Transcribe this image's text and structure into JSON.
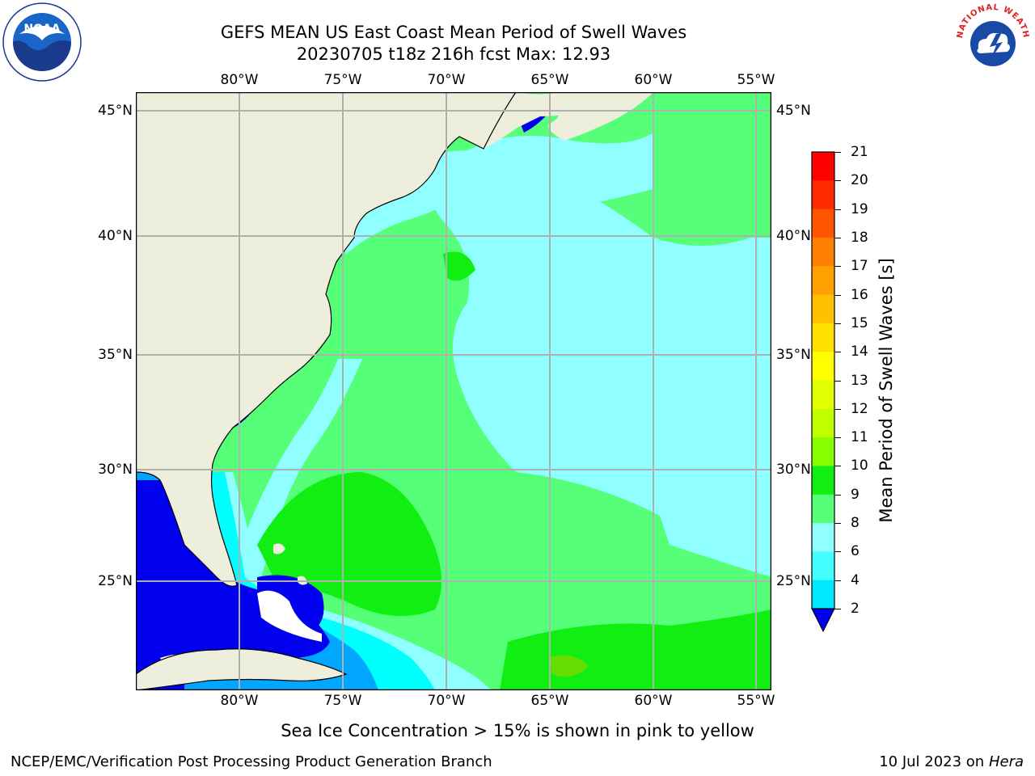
{
  "title": {
    "line1": "GEFS MEAN US East Coast Mean Period of Swell Waves",
    "line2": "20230705 t18z 216h fcst   Max: 12.93"
  },
  "map": {
    "lon_ticks_top": [
      "80°W",
      "75°W",
      "70°W",
      "65°W",
      "60°W",
      "55°W"
    ],
    "lon_ticks_bottom": [
      "80°W",
      "75°W",
      "70°W",
      "65°W",
      "60°W",
      "55°W"
    ],
    "lat_ticks_left": [
      "45°N",
      "40°N",
      "35°N",
      "30°N",
      "25°N"
    ],
    "lat_ticks_right": [
      "45°N",
      "40°N",
      "35°N",
      "30°N",
      "25°N"
    ],
    "colors": {
      "land": "#eeeedd",
      "grid": "#b0b0b0",
      "period_2_4": "#0000ee",
      "period_4_6": "#00a6ff",
      "period_6_8": "#00ffff",
      "period_8_9": "#90ffff",
      "period_9_10": "#55ff77",
      "period_10_11": "#11ee11",
      "period_11_12": "#66dd00"
    }
  },
  "colorbar": {
    "label": "Mean Period of Swell Waves [s]",
    "tick_labels": [
      "21",
      "20",
      "19",
      "18",
      "17",
      "16",
      "15",
      "14",
      "13",
      "12",
      "11",
      "10",
      "9",
      "8",
      "6",
      "4",
      "2"
    ],
    "colors_top_to_bottom": [
      "#ff0000",
      "#ff2a00",
      "#ff5500",
      "#ff7f00",
      "#ffa000",
      "#ffc000",
      "#ffe000",
      "#ffff00",
      "#e0ff00",
      "#c0ff00",
      "#88ff00",
      "#11ee11",
      "#55ff77",
      "#90ffff",
      "#44ffff",
      "#00e8ff",
      "#0080ff"
    ],
    "extend_color": "#0000ee"
  },
  "caption": "Sea Ice Concentration > 15% is shown in pink to yellow",
  "footer": {
    "left": "NCEP/EMC/Verification Post Processing Product Generation Branch",
    "right_prefix": "10 Jul 2023 on ",
    "right_machine": "Hera"
  },
  "logos": {
    "noaa_text": "NOAA",
    "nws_text": "NATIONAL WEATHER SERVICE"
  }
}
